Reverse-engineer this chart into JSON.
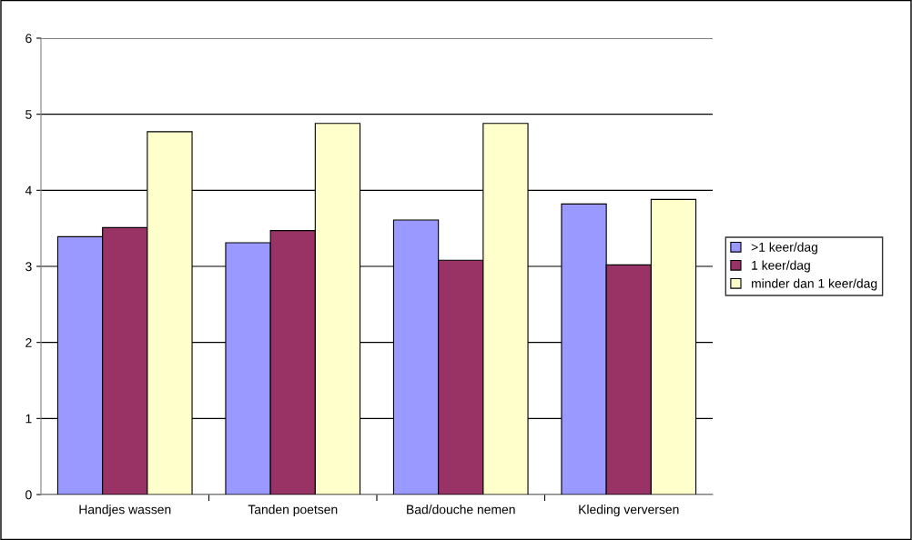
{
  "chart_data": {
    "type": "bar",
    "categories": [
      "Handjes wassen",
      "Tanden poetsen",
      "Bad/douche nemen",
      "Kleding verversen"
    ],
    "series": [
      {
        "name": ">1 keer/dag",
        "color": "#9999ff",
        "values": [
          3.39,
          3.31,
          3.61,
          3.82
        ]
      },
      {
        "name": "1 keer/dag",
        "color": "#993366",
        "values": [
          3.51,
          3.47,
          3.08,
          3.02
        ]
      },
      {
        "name": "minder dan 1 keer/dag",
        "color": "#ffffcc",
        "values": [
          4.77,
          4.88,
          4.88,
          3.88
        ]
      }
    ],
    "ylim": [
      0,
      6
    ],
    "yticks": [
      0,
      1,
      2,
      3,
      4,
      5,
      6
    ],
    "grid": "y",
    "legend": "right"
  }
}
